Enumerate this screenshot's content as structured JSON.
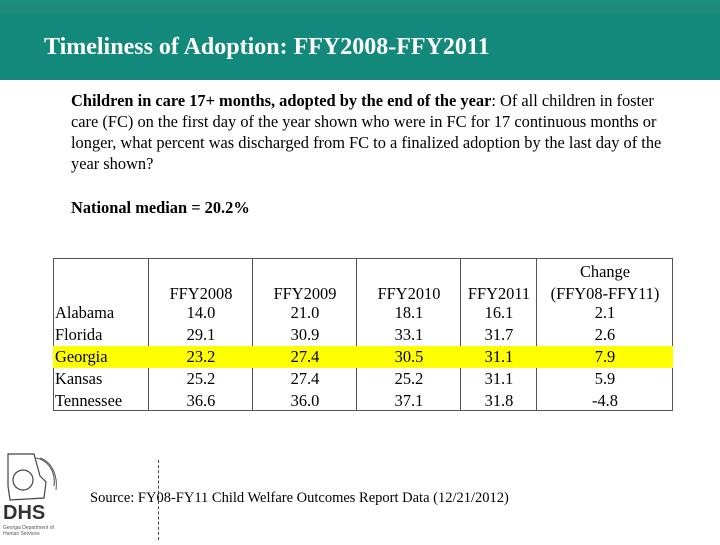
{
  "title": "Timeliness of Adoption: FFY2008-FFY2011",
  "description": {
    "bold": "Children in care 17+ months, adopted by the end of the year",
    "rest": ": Of all children in foster care (FC) on the first day of the year shown who were in FC for 17 continuous months or longer, what percent was discharged from FC to a finalized adoption by the last day of the year shown?"
  },
  "median": "National median = 20.2%",
  "table": {
    "headers": [
      "FFY2008",
      "FFY2009",
      "FFY2010",
      "FFY2011"
    ],
    "change_header_line1": "Change",
    "change_header_line2": "(FFY08-FFY11)",
    "rows": [
      {
        "state": "Alabama",
        "v": [
          "14.0",
          "21.0",
          "18.1",
          "16.1",
          "2.1"
        ]
      },
      {
        "state": "Florida",
        "v": [
          "29.1",
          "30.9",
          "33.1",
          "31.7",
          "2.6"
        ]
      },
      {
        "state": "Georgia",
        "v": [
          "23.2",
          "27.4",
          "30.5",
          "31.1",
          "7.9"
        ]
      },
      {
        "state": "Kansas",
        "v": [
          "25.2",
          "27.4",
          "25.2",
          "31.1",
          "5.9"
        ]
      },
      {
        "state": "Tennessee",
        "v": [
          "36.6",
          "36.0",
          "37.1",
          "31.8",
          "-4.8"
        ]
      }
    ]
  },
  "logo_text": "DHS",
  "logo_subtext": "Georgia Department of Human Services",
  "source": "Source: FY08-FY11 Child Welfare Outcomes Report Data (12/21/2012)",
  "colors": {
    "accent": "#13897b",
    "highlight": "#ffff00"
  }
}
